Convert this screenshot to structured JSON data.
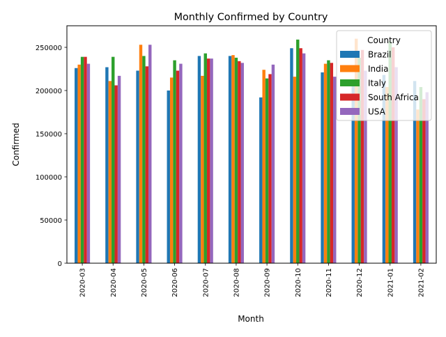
{
  "chart_data": {
    "type": "bar",
    "title": "Monthly Confirmed by Country",
    "xlabel": "Month",
    "ylabel": "Confirmed",
    "ylim": [
      0,
      275000
    ],
    "yticks": [
      0,
      50000,
      100000,
      150000,
      200000,
      250000
    ],
    "grid": false,
    "legend_position": "top-right",
    "legend_title": "Country",
    "categories": [
      "2020-03",
      "2020-04",
      "2020-05",
      "2020-06",
      "2020-07",
      "2020-08",
      "2020-09",
      "2020-10",
      "2020-11",
      "2020-12",
      "2021-01",
      "2021-02"
    ],
    "series": [
      {
        "name": "Brazil",
        "color": "#1f77b4",
        "values": [
          226000,
          227000,
          223000,
          200000,
          240000,
          240000,
          192000,
          249000,
          221000,
          205000,
          218000,
          211000
        ]
      },
      {
        "name": "India",
        "color": "#ff7f0e",
        "values": [
          230000,
          211000,
          253000,
          215000,
          217000,
          241000,
          224000,
          216000,
          231000,
          260000,
          204000,
          178000
        ]
      },
      {
        "name": "Italy",
        "color": "#2ca02c",
        "values": [
          239000,
          239000,
          240000,
          235000,
          243000,
          238000,
          214000,
          259000,
          235000,
          238000,
          257000,
          204000
        ]
      },
      {
        "name": "South Africa",
        "color": "#d62728",
        "values": [
          239000,
          206000,
          228000,
          223000,
          237000,
          234000,
          219000,
          249000,
          232000,
          247000,
          250000,
          190000
        ]
      },
      {
        "name": "USA",
        "color": "#9467bd",
        "values": [
          231000,
          217000,
          253000,
          231000,
          237000,
          232000,
          230000,
          243000,
          216000,
          223000,
          227000,
          198000
        ]
      }
    ]
  }
}
